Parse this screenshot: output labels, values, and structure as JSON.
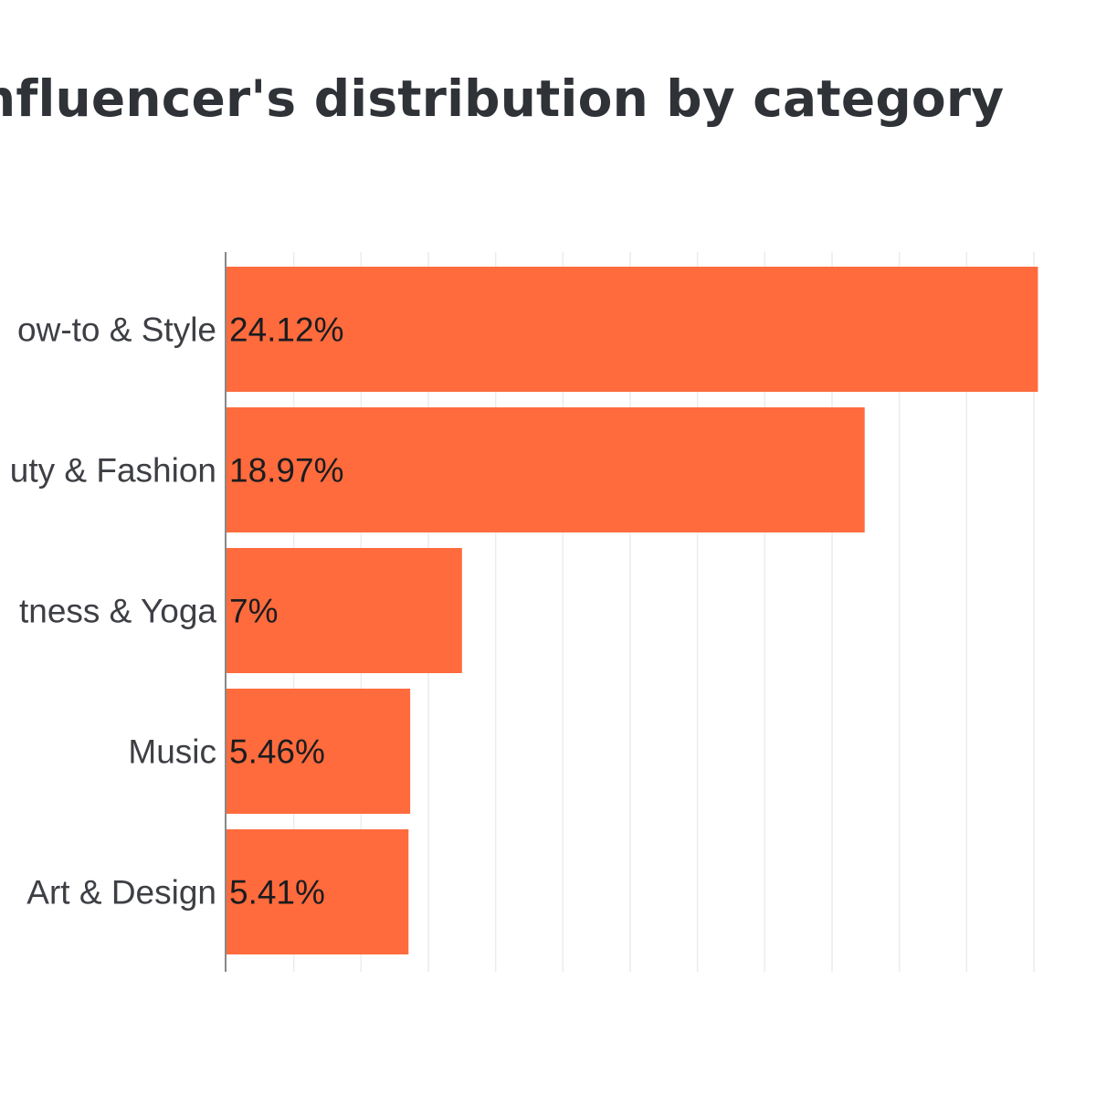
{
  "chart_data": {
    "type": "bar",
    "orientation": "horizontal",
    "title": "nfluencer's distribution by category",
    "categories": [
      "ow-to & Style",
      "uty & Fashion",
      "tness & Yoga",
      "Music",
      "Art & Design"
    ],
    "values": [
      24.12,
      18.97,
      7,
      5.46,
      5.41
    ],
    "value_labels": [
      "24.12%",
      "18.97%",
      "7%",
      "5.46%",
      "5.41%"
    ],
    "xlim": [
      0,
      24
    ],
    "grid": true,
    "legend": "none",
    "colors": {
      "bar": "#ff6b3d",
      "grid": "#ececec",
      "axis": "#888888"
    }
  }
}
